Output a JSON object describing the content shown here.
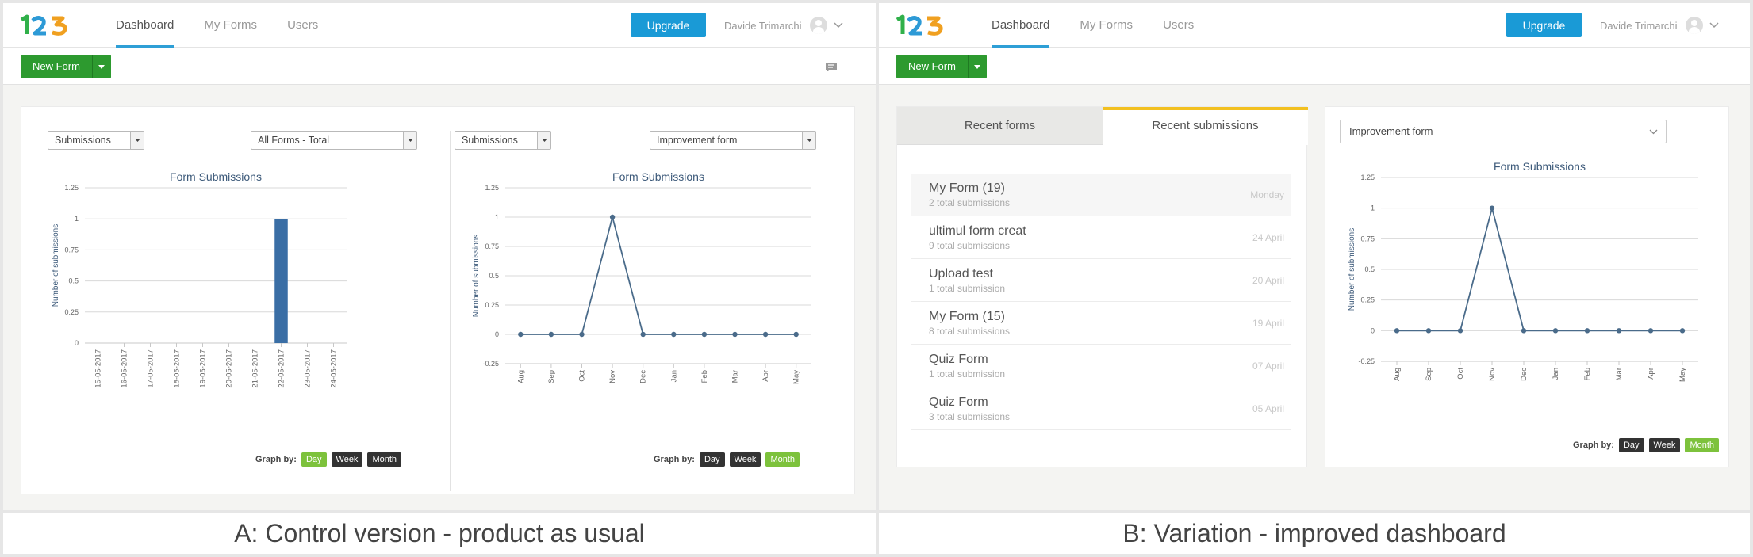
{
  "logo_text": "123",
  "nav": {
    "items": [
      "Dashboard",
      "My Forms",
      "Users"
    ]
  },
  "upgrade_label": "Upgrade",
  "user_name": "Davide Trimarchi",
  "new_form_label": "New Form",
  "graph_by_label": "Graph by:",
  "graph_by_options": [
    "Day",
    "Week",
    "Month"
  ],
  "colors": {
    "accent": "#1a9ad6",
    "green": "#2d9a2f",
    "bar": "#3a6ea5",
    "line": "#4a6b8a",
    "active_toggle": "#7dc23c",
    "tab_highlight": "#f2c020"
  },
  "panel_a": {
    "caption": "A: Control version - product as usual",
    "chart1_select_metric": "Submissions",
    "chart1_select_form": "All Forms - Total",
    "chart2_select_metric": "Submissions",
    "chart2_select_form": "Improvement form"
  },
  "panel_b": {
    "caption": "B: Variation - improved dashboard",
    "tabs": [
      "Recent forms",
      "Recent submissions"
    ],
    "forms": [
      {
        "name": "My Form (19)",
        "sub": "2 total submissions",
        "date": "Monday"
      },
      {
        "name": "ultimul form creat",
        "sub": "9 total submissions",
        "date": "24 April"
      },
      {
        "name": "Upload test",
        "sub": "1 total submission",
        "date": "20 April"
      },
      {
        "name": "My Form (15)",
        "sub": "8 total submissions",
        "date": "19 April"
      },
      {
        "name": "Quiz Form",
        "sub": "1 total submission",
        "date": "07 April"
      },
      {
        "name": "Quiz Form",
        "sub": "3 total submissions",
        "date": "05 April"
      }
    ],
    "select_form": "Improvement form"
  },
  "chart_data": [
    {
      "type": "bar",
      "title": "Form Submissions",
      "ylabel": "Number of submissions",
      "ylim": [
        0,
        1.25
      ],
      "yticks": [
        0,
        0.25,
        0.5,
        0.75,
        1,
        1.25
      ],
      "categories": [
        "15-05-2017",
        "16-05-2017",
        "17-05-2017",
        "18-05-2017",
        "19-05-2017",
        "20-05-2017",
        "21-05-2017",
        "22-05-2017",
        "23-05-2017",
        "24-05-2017"
      ],
      "values": [
        0,
        0,
        0,
        0,
        0,
        0,
        0,
        1,
        0,
        0
      ],
      "active_graph_by": "Day"
    },
    {
      "type": "line",
      "title": "Form Submissions",
      "ylabel": "Number of submissions",
      "ylim": [
        -0.25,
        1.25
      ],
      "yticks": [
        -0.25,
        0,
        0.25,
        0.5,
        0.75,
        1,
        1.25
      ],
      "categories": [
        "Aug",
        "Sep",
        "Oct",
        "Nov",
        "Dec",
        "Jan",
        "Feb",
        "Mar",
        "Apr",
        "May"
      ],
      "values": [
        0,
        0,
        0,
        1,
        0,
        0,
        0,
        0,
        0,
        0
      ],
      "active_graph_by": "Month"
    },
    {
      "type": "line",
      "title": "Form Submissions",
      "ylabel": "Number of submissions",
      "ylim": [
        -0.25,
        1.25
      ],
      "yticks": [
        -0.25,
        0,
        0.25,
        0.5,
        0.75,
        1,
        1.25
      ],
      "categories": [
        "Aug",
        "Sep",
        "Oct",
        "Nov",
        "Dec",
        "Jan",
        "Feb",
        "Mar",
        "Apr",
        "May"
      ],
      "values": [
        0,
        0,
        0,
        1,
        0,
        0,
        0,
        0,
        0,
        0
      ],
      "active_graph_by": "Month"
    }
  ]
}
